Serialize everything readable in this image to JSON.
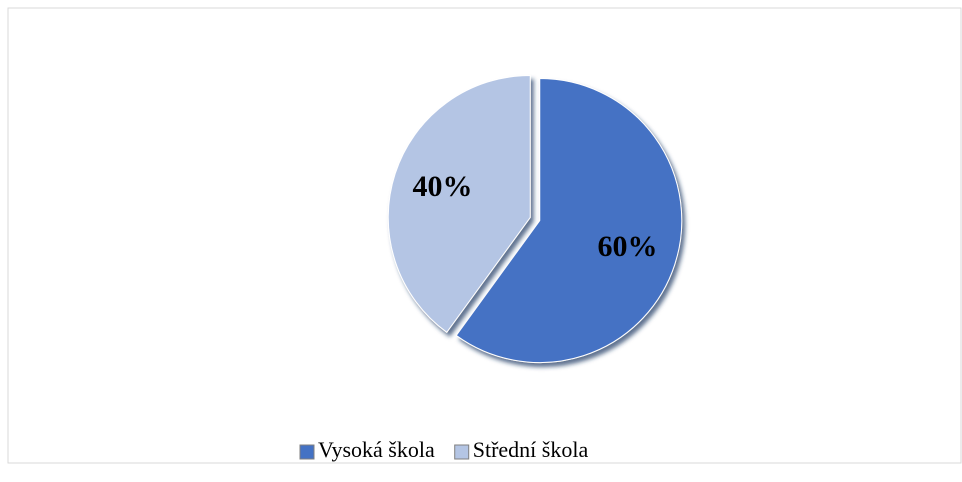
{
  "chart_data": {
    "type": "pie",
    "categories": [
      "Vysoká škola",
      "Střední škola"
    ],
    "values": [
      60,
      40
    ],
    "value_labels": [
      "60%",
      "40%"
    ],
    "colors": [
      "#4472c4",
      "#b4c5e4"
    ],
    "legend": "bottom"
  }
}
